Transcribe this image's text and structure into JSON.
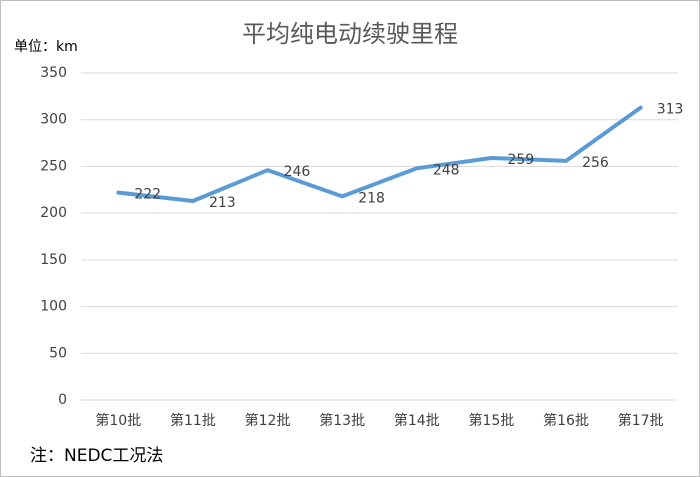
{
  "chart_data": {
    "type": "line",
    "title": "平均纯电动续驶里程",
    "unit_label": "单位：km",
    "note": "注：NEDC工况法",
    "categories": [
      "第10批",
      "第11批",
      "第12批",
      "第13批",
      "第14批",
      "第15批",
      "第16批",
      "第17批"
    ],
    "series": [
      {
        "name": "平均纯电动续驶里程",
        "color": "#5b9bd5",
        "values": [
          222,
          213,
          246,
          218,
          248,
          259,
          256,
          313
        ]
      }
    ],
    "ylim": [
      0,
      350
    ],
    "yticks": [
      0,
      50,
      100,
      150,
      200,
      250,
      300,
      350
    ],
    "grid": true,
    "data_labels": true
  }
}
